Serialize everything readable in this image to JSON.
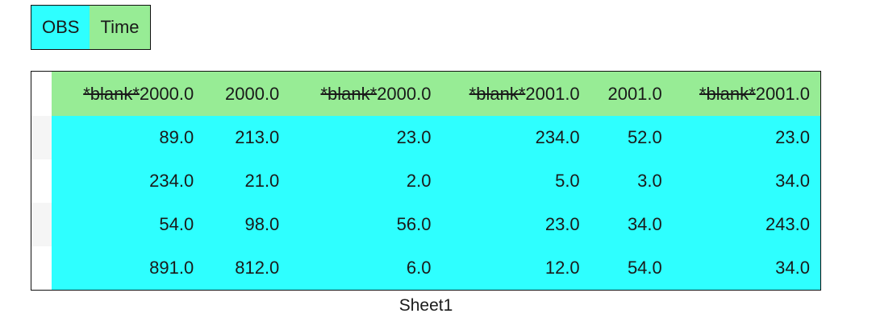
{
  "legend": {
    "obs_label": "OBS",
    "time_label": "Time"
  },
  "colors": {
    "obs": "#2effff",
    "time": "#97ec95",
    "border": "#111111",
    "index_stripe": "#f5f5f5"
  },
  "table": {
    "headers": [
      {
        "blank": "*blank*",
        "value": "2000.0"
      },
      {
        "blank": "",
        "value": "2000.0"
      },
      {
        "blank": "*blank*",
        "value": "2000.0"
      },
      {
        "blank": "*blank*",
        "value": "2001.0"
      },
      {
        "blank": "",
        "value": "2001.0"
      },
      {
        "blank": "*blank*",
        "value": "2001.0"
      }
    ],
    "rows": [
      [
        "89.0",
        "213.0",
        "23.0",
        "234.0",
        "52.0",
        "23.0"
      ],
      [
        "234.0",
        "21.0",
        "2.0",
        "5.0",
        "3.0",
        "34.0"
      ],
      [
        "54.0",
        "98.0",
        "56.0",
        "23.0",
        "34.0",
        "243.0"
      ],
      [
        "891.0",
        "812.0",
        "6.0",
        "12.0",
        "54.0",
        "34.0"
      ]
    ]
  },
  "sheet_name": "Sheet1"
}
